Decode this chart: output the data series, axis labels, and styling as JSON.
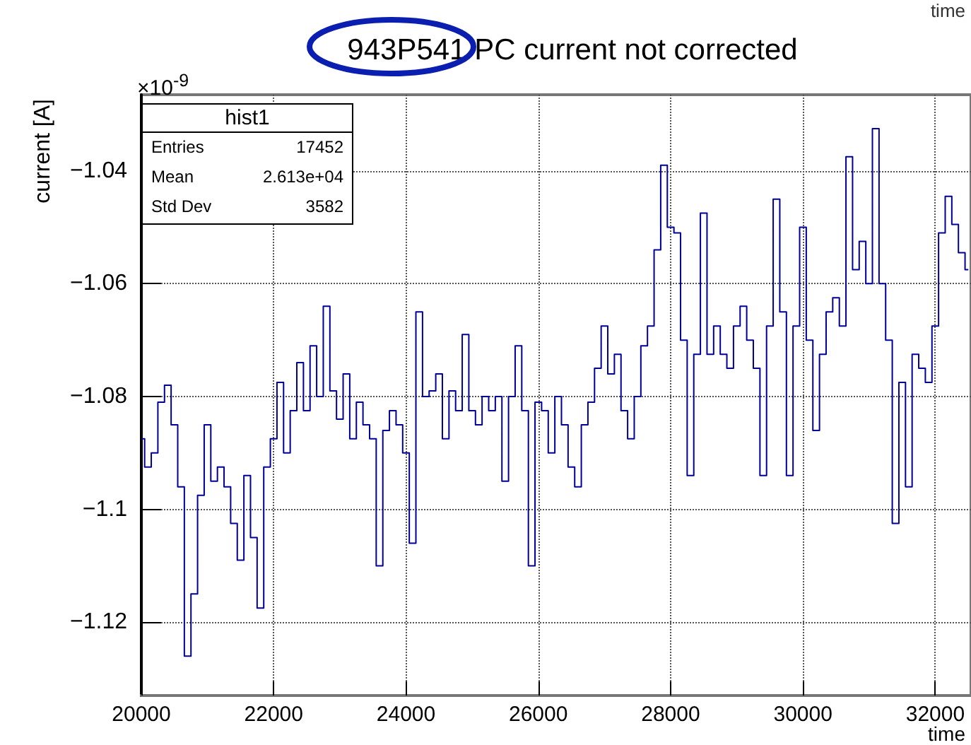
{
  "chart_data": {
    "type": "step",
    "title": "943P541 PC current not corrected",
    "xlabel": "time",
    "ylabel": "current [A]",
    "annotations": [
      "×10$^{-9}$",
      "hist1",
      "Entries",
      "17452",
      "Mean",
      "2.613e+04",
      "Std Dev",
      "3582",
      "time"
    ],
    "x": [
      20000,
      20100,
      20200,
      20300,
      20400,
      20500,
      20600,
      20700,
      20800,
      20900,
      21000,
      21100,
      21200,
      21300,
      21400,
      21500,
      21600,
      21700,
      21800,
      21900,
      22000,
      22100,
      22200,
      22300,
      22400,
      22500,
      22600,
      22700,
      22800,
      22900,
      23000,
      23100,
      23200,
      23300,
      23400,
      23500,
      23600,
      23700,
      23800,
      23900,
      24000,
      24100,
      24200,
      24300,
      24400,
      24500,
      24600,
      24700,
      24800,
      24900,
      25000,
      25100,
      25200,
      25300,
      25400,
      25500,
      25600,
      25700,
      25800,
      25900,
      26000,
      26100,
      26200,
      26300,
      26400,
      26500,
      26600,
      26700,
      26800,
      26900,
      27000,
      27100,
      27200,
      27300,
      27400,
      27500,
      27600,
      27700,
      27800,
      27900,
      28000,
      28100,
      28200,
      28300,
      28400,
      28500,
      28600,
      28700,
      28800,
      28900,
      29000,
      29100,
      29200,
      29300,
      29400,
      29500,
      29600,
      29700,
      29800,
      29900,
      30000,
      30100,
      30200,
      30300,
      30400,
      30500,
      30600,
      30700,
      30800,
      30900,
      31000,
      31100,
      31200,
      31300,
      31400,
      31500,
      31600,
      31700,
      31800,
      31900,
      32000,
      32100,
      32200,
      32300,
      32400,
      32500
    ],
    "series": [
      {
        "color": "#000099",
        "values": [
          -1.0875,
          -1.0925,
          -1.09,
          -1.081,
          -1.078,
          -1.085,
          -1.096,
          -1.126,
          -1.115,
          -1.0975,
          -1.085,
          -1.095,
          -1.0925,
          -1.096,
          -1.1025,
          -1.109,
          -1.094,
          -1.105,
          -1.1175,
          -1.0925,
          -1.0875,
          -1.0775,
          -1.09,
          -1.0825,
          -1.074,
          -1.0825,
          -1.071,
          -1.08,
          -1.064,
          -1.079,
          -1.084,
          -1.076,
          -1.0875,
          -1.081,
          -1.085,
          -1.0875,
          -1.11,
          -1.086,
          -1.0825,
          -1.085,
          -1.09,
          -1.106,
          -1.065,
          -1.08,
          -1.079,
          -1.076,
          -1.0875,
          -1.079,
          -1.0825,
          -1.069,
          -1.0825,
          -1.085,
          -1.08,
          -1.0825,
          -1.08,
          -1.095,
          -1.08,
          -1.071,
          -1.0825,
          -1.11,
          -1.081,
          -1.0825,
          -1.09,
          -1.08,
          -1.085,
          -1.0925,
          -1.096,
          -1.085,
          -1.081,
          -1.075,
          -1.0675,
          -1.076,
          -1.0725,
          -1.0825,
          -1.0875,
          -1.08,
          -1.071,
          -1.0675,
          -1.054,
          -1.039,
          -1.05,
          -1.051,
          -1.07,
          -1.094,
          -1.0725,
          -1.0475,
          -1.0725,
          -1.0675,
          -1.0725,
          -1.075,
          -1.0675,
          -1.064,
          -1.07,
          -1.075,
          -1.094,
          -1.0675,
          -1.045,
          -1.065,
          -1.094,
          -1.0675,
          -1.05,
          -1.07,
          -1.086,
          -1.0725,
          -1.065,
          -1.0625,
          -1.0675,
          -1.0375,
          -1.0575,
          -1.0525,
          -1.06,
          -1.0325,
          -1.06,
          -1.07,
          -1.1025,
          -1.0775,
          -1.096,
          -1.0725,
          -1.075,
          -1.0775,
          -1.0675,
          -1.051,
          -1.0445,
          -1.0495,
          -1.0545,
          -1.0575
        ]
      }
    ],
    "xlim": [
      20000,
      32540
    ],
    "xticks": [
      20000,
      22000,
      24000,
      26000,
      28000,
      30000,
      32000
    ],
    "ylim": [
      -1.133,
      -1.0265
    ],
    "yticks": [
      {
        "value": -1.12,
        "label": "−1.12"
      },
      {
        "value": -1.1,
        "label": "−1.1"
      },
      {
        "value": -1.08,
        "label": "−1.08"
      },
      {
        "value": -1.06,
        "label": "−1.06"
      },
      {
        "value": -1.04,
        "label": "−1.04"
      }
    ],
    "grid": true,
    "marker": "none",
    "line_style": "solid"
  }
}
